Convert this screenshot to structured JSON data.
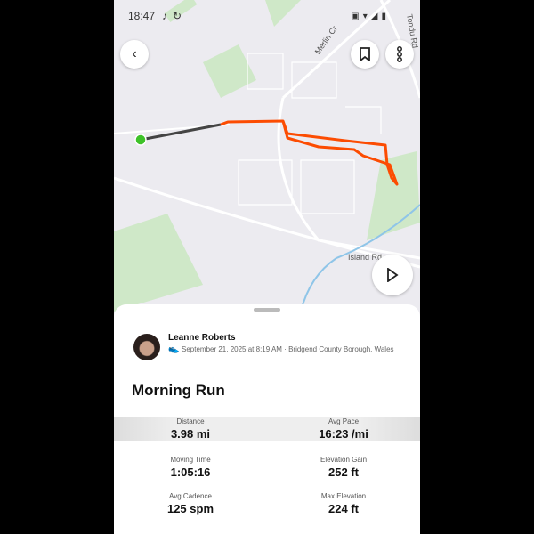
{
  "status_bar": {
    "time": "18:47",
    "icons": [
      "tiktok-icon",
      "sync-icon",
      "nfc-icon",
      "wifi-call-icon",
      "wifi-icon",
      "signal-icon",
      "battery-icon"
    ]
  },
  "map": {
    "labels": {
      "merlin": "Merlin Cr",
      "tondu": "Tondu Rd",
      "island": "Island Rd"
    },
    "route_color": "#fc4c02",
    "start_color": "#3ec229"
  },
  "buttons": {
    "back": "back-icon",
    "bookmark": "bookmark-icon",
    "more": "more-icon",
    "play": "play-icon"
  },
  "activity": {
    "athlete": "Leanne Roberts",
    "meta": "September 21, 2025 at 8:19 AM · Bridgend County Borough, Wales",
    "title": "Morning Run"
  },
  "stats": [
    {
      "label": "Distance",
      "value": "3.98 mi"
    },
    {
      "label": "Avg Pace",
      "value": "16:23 /mi"
    },
    {
      "label": "Moving Time",
      "value": "1:05:16"
    },
    {
      "label": "Elevation Gain",
      "value": "252 ft"
    },
    {
      "label": "Avg Cadence",
      "value": "125 spm"
    },
    {
      "label": "Max Elevation",
      "value": "224 ft"
    }
  ]
}
